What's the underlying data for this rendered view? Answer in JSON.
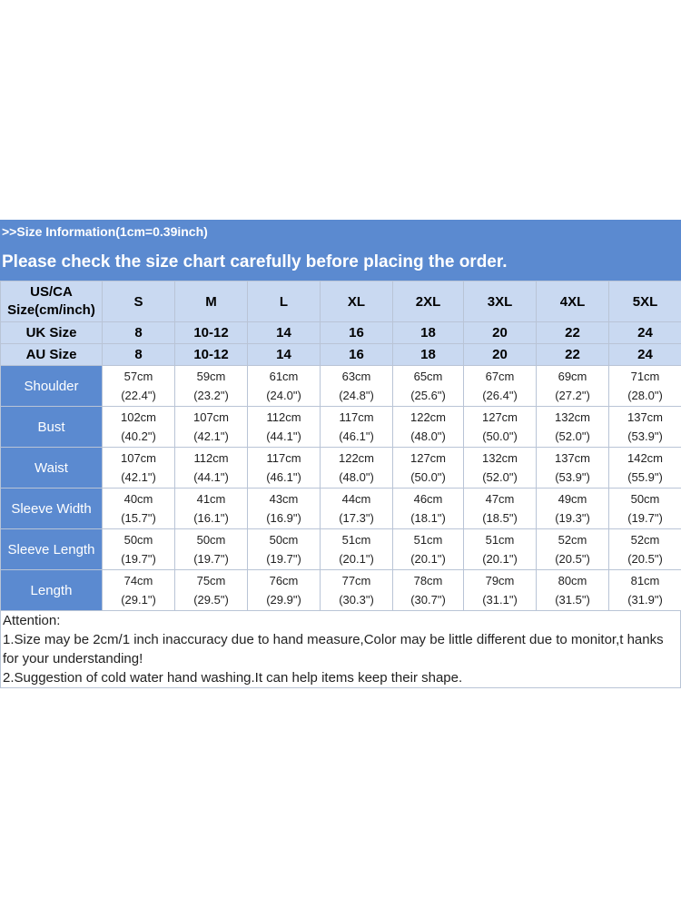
{
  "banner_info": ">>Size Information(1cm=0.39inch)",
  "banner_notice": "Please check the size chart carefully before placing the order.",
  "corner_line1": "US/CA",
  "corner_line2": "Size(cm/inch)",
  "sizes": [
    "S",
    "M",
    "L",
    "XL",
    "2XL",
    "3XL",
    "4XL",
    "5XL"
  ],
  "uk": {
    "label": "UK Size",
    "values": [
      "8",
      "10-12",
      "14",
      "16",
      "18",
      "20",
      "22",
      "24"
    ]
  },
  "au": {
    "label": "AU Size",
    "values": [
      "8",
      "10-12",
      "14",
      "16",
      "18",
      "20",
      "22",
      "24"
    ]
  },
  "measurements": [
    {
      "label": "Shoulder",
      "cm": [
        "57cm",
        "59cm",
        "61cm",
        "63cm",
        "65cm",
        "67cm",
        "69cm",
        "71cm"
      ],
      "inch": [
        "(22.4\")",
        "(23.2\")",
        "(24.0\")",
        "(24.8\")",
        "(25.6\")",
        "(26.4\")",
        "(27.2\")",
        "(28.0\")"
      ]
    },
    {
      "label": "Bust",
      "cm": [
        "102cm",
        "107cm",
        "112cm",
        "117cm",
        "122cm",
        "127cm",
        "132cm",
        "137cm"
      ],
      "inch": [
        "(40.2\")",
        "(42.1\")",
        "(44.1\")",
        "(46.1\")",
        "(48.0\")",
        "(50.0\")",
        "(52.0\")",
        "(53.9\")"
      ]
    },
    {
      "label": "Waist",
      "cm": [
        "107cm",
        "112cm",
        "117cm",
        "122cm",
        "127cm",
        "132cm",
        "137cm",
        "142cm"
      ],
      "inch": [
        "(42.1\")",
        "(44.1\")",
        "(46.1\")",
        "(48.0\")",
        "(50.0\")",
        "(52.0\")",
        "(53.9\")",
        "(55.9\")"
      ]
    },
    {
      "label": "Sleeve Width",
      "cm": [
        "40cm",
        "41cm",
        "43cm",
        "44cm",
        "46cm",
        "47cm",
        "49cm",
        "50cm"
      ],
      "inch": [
        "(15.7\")",
        "(16.1\")",
        "(16.9\")",
        "(17.3\")",
        "(18.1\")",
        "(18.5\")",
        "(19.3\")",
        "(19.7\")"
      ]
    },
    {
      "label": "Sleeve Length",
      "cm": [
        "50cm",
        "50cm",
        "50cm",
        "51cm",
        "51cm",
        "51cm",
        "52cm",
        "52cm"
      ],
      "inch": [
        "(19.7\")",
        "(19.7\")",
        "(19.7\")",
        "(20.1\")",
        "(20.1\")",
        "(20.1\")",
        "(20.5\")",
        "(20.5\")"
      ]
    },
    {
      "label": "Length",
      "cm": [
        "74cm",
        "75cm",
        "76cm",
        "77cm",
        "78cm",
        "79cm",
        "80cm",
        "81cm"
      ],
      "inch": [
        "(29.1\")",
        "(29.5\")",
        "(29.9\")",
        "(30.3\")",
        "(30.7\")",
        "(31.1\")",
        "(31.5\")",
        "(31.9\")"
      ]
    }
  ],
  "attention": {
    "title": "Attention:",
    "note1": "1.Size may be 2cm/1 inch inaccuracy due to hand measure,Color may be little different due to monitor,t hanks for your understanding!",
    "note2": "2.Suggestion of cold water hand washing.It can help items keep their shape."
  },
  "colors": {
    "banner": "#5b8ad0",
    "header": "#c9d9f1",
    "border": "#b9c4d6"
  }
}
